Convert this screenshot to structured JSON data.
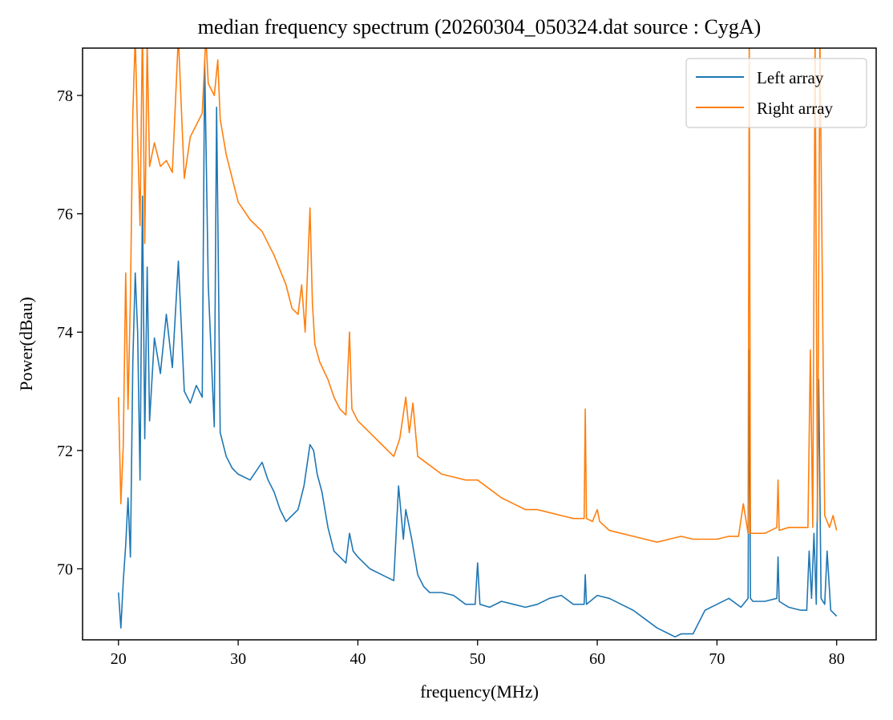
{
  "chart_data": {
    "type": "line",
    "title": "median frequency spectrum (20260304_050324.dat source : CygA)",
    "xlabel": "frequency(MHz)",
    "ylabel": "Power(dBau)",
    "xlim": [
      17,
      83.3
    ],
    "ylim": [
      68.8,
      78.8
    ],
    "xticks": [
      20,
      30,
      40,
      50,
      60,
      70,
      80
    ],
    "yticks": [
      70,
      72,
      74,
      76,
      78
    ],
    "grid": false,
    "legend_position": "top-right",
    "series": [
      {
        "name": "Left array",
        "color": "#1f77b4",
        "x": [
          20.0,
          20.2,
          20.4,
          20.6,
          20.8,
          21.0,
          21.2,
          21.4,
          21.6,
          21.8,
          22.0,
          22.2,
          22.4,
          22.6,
          23.0,
          23.5,
          24.0,
          24.5,
          25.0,
          25.5,
          26.0,
          26.5,
          27.0,
          27.2,
          27.5,
          28.0,
          28.2,
          28.5,
          29.0,
          29.5,
          30.0,
          31.0,
          32.0,
          32.5,
          33.0,
          33.5,
          34.0,
          34.5,
          35.0,
          35.5,
          36.0,
          36.3,
          36.6,
          37.0,
          37.5,
          38.0,
          38.5,
          39.0,
          39.3,
          39.6,
          40.0,
          41.0,
          42.0,
          43.0,
          43.4,
          43.8,
          44.0,
          44.5,
          45.0,
          45.5,
          46.0,
          47.0,
          48.0,
          49.0,
          49.8,
          50.0,
          50.2,
          51.0,
          52.0,
          53.0,
          54.0,
          55.0,
          56.0,
          57.0,
          58.0,
          58.9,
          59.0,
          59.1,
          60.0,
          61.0,
          62.0,
          63.0,
          64.0,
          65.0,
          66.0,
          66.5,
          67.0,
          68.0,
          69.0,
          70.0,
          71.0,
          72.0,
          72.6,
          72.7,
          72.8,
          73.0,
          74.0,
          75.0,
          75.1,
          75.2,
          76.0,
          77.0,
          77.5,
          77.7,
          77.9,
          78.1,
          78.3,
          78.5,
          78.7,
          79.0,
          79.2,
          79.5,
          80.0
        ],
        "values": [
          69.6,
          69.0,
          69.8,
          70.4,
          71.2,
          70.2,
          73.5,
          75.0,
          74.0,
          71.5,
          76.3,
          72.2,
          75.1,
          72.5,
          73.9,
          73.3,
          74.3,
          73.4,
          75.2,
          73.0,
          72.8,
          73.1,
          72.9,
          78.6,
          74.8,
          72.4,
          77.8,
          72.3,
          71.9,
          71.7,
          71.6,
          71.5,
          71.8,
          71.5,
          71.3,
          71.0,
          70.8,
          70.9,
          71.0,
          71.4,
          72.1,
          72.0,
          71.6,
          71.3,
          70.7,
          70.3,
          70.2,
          70.1,
          70.6,
          70.3,
          70.2,
          70.0,
          69.9,
          69.8,
          71.4,
          70.5,
          71.0,
          70.5,
          69.9,
          69.7,
          69.6,
          69.6,
          69.55,
          69.4,
          69.4,
          70.1,
          69.4,
          69.35,
          69.45,
          69.4,
          69.35,
          69.4,
          69.5,
          69.55,
          69.4,
          69.4,
          69.9,
          69.4,
          69.55,
          69.5,
          69.4,
          69.3,
          69.15,
          69.0,
          68.9,
          68.85,
          68.9,
          68.9,
          69.3,
          69.4,
          69.5,
          69.35,
          69.5,
          73.7,
          69.5,
          69.45,
          69.45,
          69.5,
          70.2,
          69.45,
          69.35,
          69.3,
          69.3,
          70.3,
          69.5,
          70.6,
          69.4,
          73.2,
          69.5,
          69.4,
          70.3,
          69.3,
          69.2
        ]
      },
      {
        "name": "Right array",
        "color": "#ff7f0e",
        "x": [
          20.0,
          20.2,
          20.4,
          20.6,
          20.8,
          21.0,
          21.2,
          21.4,
          21.6,
          21.8,
          22.0,
          22.2,
          22.4,
          22.6,
          23.0,
          23.5,
          24.0,
          24.5,
          25.0,
          25.5,
          26.0,
          26.5,
          27.0,
          27.3,
          27.5,
          28.0,
          28.3,
          28.5,
          29.0,
          29.5,
          30.0,
          31.0,
          32.0,
          33.0,
          34.0,
          34.5,
          35.0,
          35.3,
          35.6,
          36.0,
          36.2,
          36.4,
          36.8,
          37.5,
          38.0,
          38.5,
          39.0,
          39.3,
          39.5,
          40.0,
          41.0,
          42.0,
          43.0,
          43.5,
          44.0,
          44.3,
          44.6,
          45.0,
          46.0,
          47.0,
          48.0,
          49.0,
          50.0,
          51.0,
          52.0,
          53.0,
          54.0,
          55.0,
          56.0,
          57.0,
          58.0,
          58.9,
          59.0,
          59.1,
          59.6,
          60.0,
          60.2,
          61.0,
          62.0,
          63.0,
          64.0,
          65.0,
          66.0,
          67.0,
          68.0,
          69.0,
          70.0,
          71.0,
          71.8,
          72.2,
          72.6,
          72.7,
          72.8,
          73.2,
          74.0,
          75.0,
          75.1,
          75.2,
          76.0,
          77.0,
          77.6,
          77.8,
          78.0,
          78.2,
          78.4,
          78.6,
          79.0,
          79.4,
          79.7,
          80.0
        ],
        "values": [
          72.9,
          71.1,
          72.1,
          75.0,
          72.7,
          74.6,
          77.7,
          79.0,
          77.3,
          75.8,
          79.2,
          75.5,
          78.9,
          76.8,
          77.2,
          76.8,
          76.9,
          76.7,
          79.0,
          76.6,
          77.3,
          77.5,
          77.7,
          79.0,
          78.2,
          78.0,
          78.6,
          77.6,
          77.0,
          76.6,
          76.2,
          75.9,
          75.7,
          75.3,
          74.8,
          74.4,
          74.3,
          74.8,
          74.0,
          76.1,
          74.5,
          73.8,
          73.5,
          73.2,
          72.9,
          72.7,
          72.6,
          74.0,
          72.7,
          72.5,
          72.3,
          72.1,
          71.9,
          72.2,
          72.9,
          72.3,
          72.8,
          71.9,
          71.75,
          71.6,
          71.55,
          71.5,
          71.5,
          71.35,
          71.2,
          71.1,
          71.0,
          71.0,
          70.95,
          70.9,
          70.85,
          70.85,
          72.7,
          70.85,
          70.8,
          71.0,
          70.8,
          70.65,
          70.6,
          70.55,
          70.5,
          70.45,
          70.5,
          70.55,
          70.5,
          70.5,
          70.5,
          70.55,
          70.55,
          71.1,
          70.6,
          79.0,
          70.6,
          70.6,
          70.6,
          70.7,
          71.5,
          70.65,
          70.7,
          70.7,
          70.7,
          73.7,
          70.7,
          79.0,
          70.8,
          79.0,
          70.9,
          70.7,
          70.9,
          70.65
        ]
      }
    ]
  }
}
